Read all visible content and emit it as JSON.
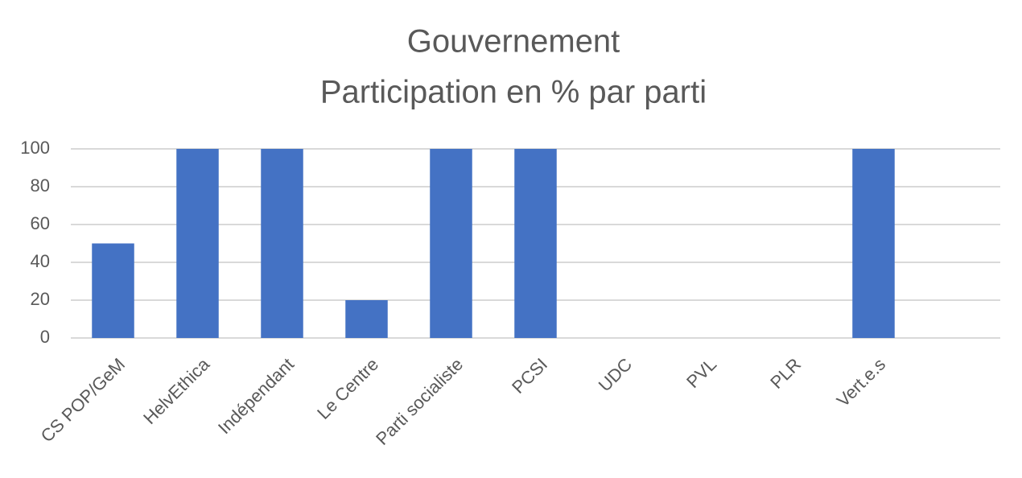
{
  "chart_data": {
    "type": "bar",
    "title": "Gouvernement",
    "subtitle": "Participation en % par parti",
    "categories": [
      "CS POP/GeM",
      "HelvEthica",
      "Indépendant",
      "Le Centre",
      "Parti socialiste",
      "PCSI",
      "UDC",
      "PVL",
      "PLR",
      "Vert.e.s",
      null
    ],
    "values": [
      50,
      100,
      100,
      20,
      100,
      100,
      0,
      0,
      0,
      100,
      0
    ],
    "color": "#4472c4",
    "ylim": [
      0,
      100
    ],
    "yticks": [
      0,
      20,
      40,
      60,
      80,
      100
    ],
    "grid": true
  }
}
